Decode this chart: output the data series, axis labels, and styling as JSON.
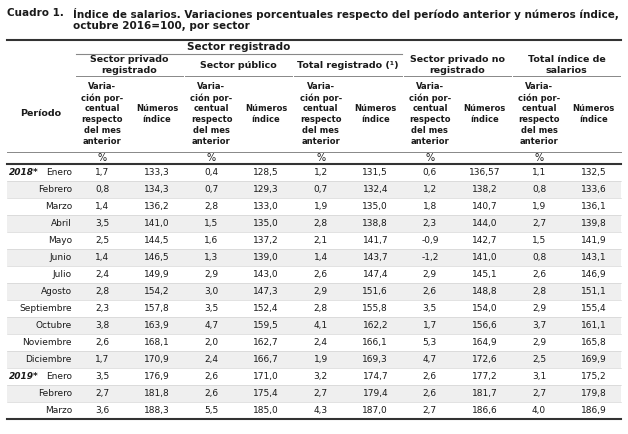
{
  "title_left": "Cuadro 1.",
  "title_right_line1": "Índice de salarios. Variaciones porcentuales respecto del período anterior y números índice,",
  "title_right_line2": "octubre 2016=100, por sector",
  "rows": [
    {
      "year": "2018*",
      "month": "Enero",
      "d": [
        1.7,
        133.3,
        0.4,
        128.5,
        1.2,
        131.5,
        0.6,
        136.57,
        1.1,
        132.5
      ]
    },
    {
      "year": "",
      "month": "Febrero",
      "d": [
        0.8,
        134.3,
        0.7,
        129.3,
        0.7,
        132.4,
        1.2,
        138.2,
        0.8,
        133.6
      ]
    },
    {
      "year": "",
      "month": "Marzo",
      "d": [
        1.4,
        136.2,
        2.8,
        133.0,
        1.9,
        135.0,
        1.8,
        140.7,
        1.9,
        136.1
      ]
    },
    {
      "year": "",
      "month": "Abril",
      "d": [
        3.5,
        141.0,
        1.5,
        135.0,
        2.8,
        138.8,
        2.3,
        144.0,
        2.7,
        139.8
      ]
    },
    {
      "year": "",
      "month": "Mayo",
      "d": [
        2.5,
        144.5,
        1.6,
        137.2,
        2.1,
        141.7,
        -0.9,
        142.7,
        1.5,
        141.9
      ]
    },
    {
      "year": "",
      "month": "Junio",
      "d": [
        1.4,
        146.5,
        1.3,
        139.0,
        1.4,
        143.7,
        -1.2,
        141.0,
        0.8,
        143.1
      ]
    },
    {
      "year": "",
      "month": "Julio",
      "d": [
        2.4,
        149.9,
        2.9,
        143.0,
        2.6,
        147.4,
        2.9,
        145.1,
        2.6,
        146.9
      ]
    },
    {
      "year": "",
      "month": "Agosto",
      "d": [
        2.8,
        154.2,
        3.0,
        147.3,
        2.9,
        151.6,
        2.6,
        148.8,
        2.8,
        151.1
      ]
    },
    {
      "year": "",
      "month": "Septiembre",
      "d": [
        2.3,
        157.8,
        3.5,
        152.4,
        2.8,
        155.8,
        3.5,
        154.0,
        2.9,
        155.4
      ]
    },
    {
      "year": "",
      "month": "Octubre",
      "d": [
        3.8,
        163.9,
        4.7,
        159.5,
        4.1,
        162.2,
        1.7,
        156.6,
        3.7,
        161.1
      ]
    },
    {
      "year": "",
      "month": "Noviembre",
      "d": [
        2.6,
        168.1,
        2.0,
        162.7,
        2.4,
        166.1,
        5.3,
        164.9,
        2.9,
        165.8
      ]
    },
    {
      "year": "",
      "month": "Diciembre",
      "d": [
        1.7,
        170.9,
        2.4,
        166.7,
        1.9,
        169.3,
        4.7,
        172.6,
        2.5,
        169.9
      ]
    },
    {
      "year": "2019*",
      "month": "Enero",
      "d": [
        3.5,
        176.9,
        2.6,
        171.0,
        3.2,
        174.7,
        2.6,
        177.2,
        3.1,
        175.2
      ]
    },
    {
      "year": "",
      "month": "Febrero",
      "d": [
        2.7,
        181.8,
        2.6,
        175.4,
        2.7,
        179.4,
        2.6,
        181.7,
        2.7,
        179.8
      ]
    },
    {
      "year": "",
      "month": "Marzo",
      "d": [
        3.6,
        188.3,
        5.5,
        185.0,
        4.3,
        187.0,
        2.7,
        186.6,
        4.0,
        186.9
      ]
    }
  ],
  "bg_odd": "#efefef",
  "bg_even": "#ffffff",
  "text_color": "#1a1a1a",
  "line_color_thick": "#333333",
  "line_color_thin": "#888888",
  "line_color_row": "#cccccc"
}
